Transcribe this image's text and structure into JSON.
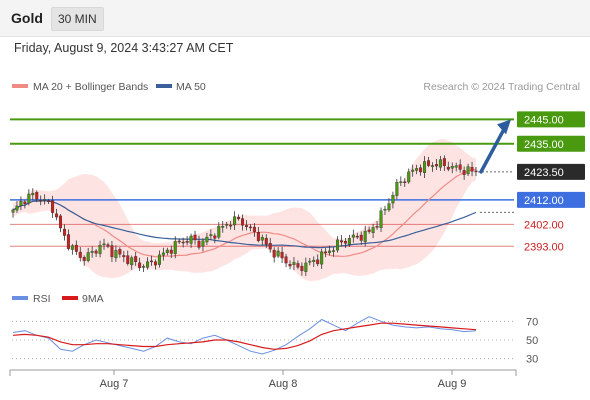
{
  "header": {
    "instrument": "Gold",
    "timeframe": "30 MIN",
    "timestamp": "Friday, August 9, 2024 3:43:27 AM CET"
  },
  "legend": {
    "ma20_label": "MA 20 + Bollinger Bands",
    "ma50_label": "MA 50",
    "credit": "Research © 2024 Trading Central",
    "ma20_color": "#f08a85",
    "ma50_color": "#3a5f9a"
  },
  "chart_data": [
    {
      "type": "candlestick",
      "title": "Gold 30 MIN",
      "x_tick_labels": [
        "Aug 7",
        "Aug 8",
        "Aug 9"
      ],
      "ylim": [
        2380,
        2455
      ],
      "levels": [
        {
          "value": 2445.0,
          "label": "2445.00",
          "kind": "target",
          "color": "#4a9a10"
        },
        {
          "value": 2435.0,
          "label": "2435.00",
          "kind": "target",
          "color": "#4a9a10"
        },
        {
          "value": 2423.5,
          "label": "2423.50",
          "kind": "last_price",
          "color": "#2a2a2a"
        },
        {
          "value": 2412.0,
          "label": "2412.00",
          "kind": "pivot",
          "color": "#3d6fe0"
        },
        {
          "value": 2402.0,
          "label": "2402.00",
          "kind": "support",
          "color": "#cc1f1f"
        },
        {
          "value": 2393.0,
          "label": "2393.00",
          "kind": "support",
          "color": "#cc1f1f"
        }
      ],
      "close_path": [
        2407,
        2412,
        2414,
        2412,
        2409,
        2398,
        2392,
        2388,
        2390,
        2394,
        2391,
        2389,
        2387,
        2385,
        2386,
        2389,
        2392,
        2395,
        2396,
        2394,
        2397,
        2400,
        2403,
        2404,
        2400,
        2397,
        2392,
        2389,
        2386,
        2384,
        2386,
        2388,
        2391,
        2394,
        2396,
        2397,
        2398,
        2403,
        2410,
        2418,
        2422,
        2425,
        2426,
        2427,
        2426,
        2425,
        2424,
        2423.5
      ],
      "bullish_color": "#4a9a10",
      "bearish_color": "#cc1f1f",
      "series": [
        {
          "name": "MA 20 + Bollinger Bands",
          "color": "#f08a85"
        },
        {
          "name": "MA 50",
          "color": "#3a5f9a"
        }
      ],
      "forecast_arrow": {
        "from": 2423.5,
        "to": 2445.0,
        "color": "#2e5d9e"
      }
    },
    {
      "type": "line",
      "title": "RSI",
      "series": [
        {
          "name": "RSI",
          "color": "#6a8fe0",
          "values": [
            58,
            60,
            55,
            52,
            40,
            38,
            45,
            50,
            47,
            44,
            41,
            38,
            43,
            52,
            48,
            46,
            52,
            55,
            50,
            44,
            38,
            35,
            39,
            45,
            54,
            62,
            72,
            66,
            60,
            68,
            75,
            70,
            66,
            64,
            63,
            64,
            62,
            61,
            59,
            60
          ]
        },
        {
          "name": "9MA",
          "color": "#d81a1a",
          "values": [
            55,
            56,
            55,
            53,
            48,
            45,
            45,
            46,
            46,
            45,
            44,
            43,
            43,
            45,
            46,
            47,
            48,
            50,
            50,
            48,
            45,
            42,
            40,
            41,
            44,
            49,
            56,
            60,
            62,
            64,
            66,
            68,
            68,
            67,
            66,
            65,
            64,
            63,
            62,
            61
          ]
        }
      ],
      "y_ticks": [
        70,
        50,
        30
      ],
      "ylim": [
        20,
        80
      ]
    }
  ]
}
